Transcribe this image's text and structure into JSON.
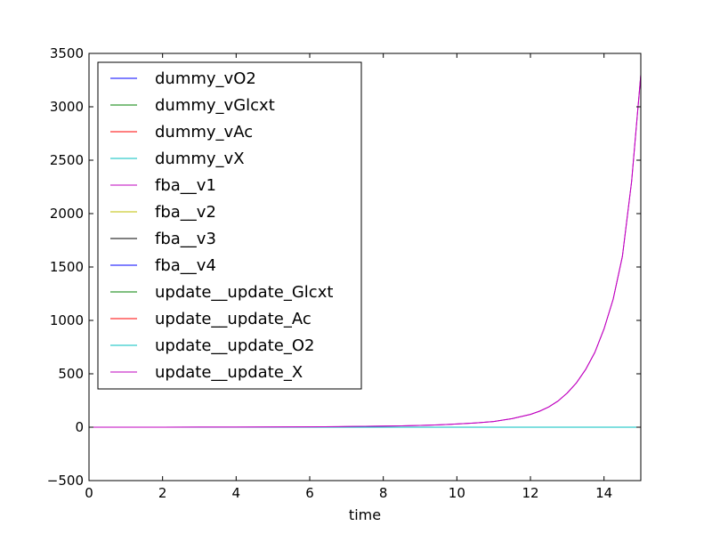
{
  "chart_data": {
    "type": "line",
    "title": "",
    "xlabel": "time",
    "ylabel": "",
    "xlim": [
      0,
      15
    ],
    "ylim": [
      -500,
      3500
    ],
    "xticks": [
      0,
      2,
      4,
      6,
      8,
      10,
      12,
      14
    ],
    "yticks": [
      -500,
      0,
      500,
      1000,
      1500,
      2000,
      2500,
      3000,
      3500
    ],
    "ytick_labels": [
      "−500",
      "0",
      "500",
      "1000",
      "1500",
      "2000",
      "2500",
      "3000",
      "3500"
    ],
    "grid": false,
    "legend_position": "upper-left",
    "x": [
      0,
      1,
      2,
      3,
      4,
      5,
      6,
      7,
      8,
      8.5,
      9,
      9.5,
      10,
      10.5,
      11,
      11.5,
      12,
      12.25,
      12.5,
      12.75,
      13,
      13.25,
      13.5,
      13.75,
      14,
      14.25,
      14.5,
      14.75,
      15
    ],
    "series": [
      {
        "name": "dummy_vO2",
        "color": "#0000ff",
        "values": [
          0,
          0,
          0,
          0,
          0,
          0,
          0,
          0,
          0,
          0,
          0,
          0,
          0,
          0,
          0,
          0,
          0,
          0,
          0,
          0,
          0,
          0,
          0,
          0,
          0,
          0,
          0,
          0,
          0
        ]
      },
      {
        "name": "dummy_vGlcxt",
        "color": "#008000",
        "values": [
          0,
          0,
          0,
          0,
          0,
          0,
          0,
          0,
          0,
          0,
          0,
          0,
          0,
          0,
          0,
          0,
          0,
          0,
          0,
          0,
          0,
          0,
          0,
          0,
          0,
          0,
          0,
          0,
          0
        ]
      },
      {
        "name": "dummy_vAc",
        "color": "#ff0000",
        "values": [
          0,
          0,
          0,
          0,
          0,
          0,
          0,
          0,
          0,
          0,
          0,
          0,
          0,
          0,
          0,
          0,
          0,
          0,
          0,
          0,
          0,
          0,
          0,
          0,
          0,
          0,
          0,
          0,
          0
        ]
      },
      {
        "name": "dummy_vX",
        "color": "#00bfbf",
        "values": [
          0,
          0,
          0,
          0,
          0,
          0,
          0,
          0,
          0,
          0,
          0,
          0,
          0,
          0,
          0,
          0,
          0,
          0,
          0,
          0,
          0,
          0,
          0,
          0,
          0,
          0,
          0,
          0,
          0
        ]
      },
      {
        "name": "fba__v1",
        "color": "#bf00bf",
        "values": [
          0.1,
          0.2,
          0.4,
          0.7,
          1.2,
          2,
          3.5,
          6,
          10,
          13,
          17,
          22,
          30,
          40,
          53,
          80,
          120,
          150,
          190,
          245,
          320,
          415,
          540,
          700,
          920,
          1200,
          1600,
          2300,
          3300
        ]
      },
      {
        "name": "fba__v2",
        "color": "#bfbf00",
        "values": [
          0,
          0,
          0,
          0,
          0,
          0,
          0,
          0,
          0,
          0,
          0,
          0,
          0,
          0,
          0,
          0,
          0,
          0,
          0,
          0,
          0,
          0,
          0,
          0,
          0,
          0,
          0,
          0,
          0
        ]
      },
      {
        "name": "fba__v3",
        "color": "#000000",
        "values": [
          0,
          0,
          0,
          0,
          0,
          0,
          0,
          0,
          0,
          0,
          0,
          0,
          0,
          0,
          0,
          0,
          0,
          0,
          0,
          0,
          0,
          0,
          0,
          0,
          0,
          0,
          0,
          0,
          0
        ]
      },
      {
        "name": "fba__v4",
        "color": "#0000ff",
        "values": [
          0,
          0,
          0,
          0,
          0,
          0,
          0,
          0,
          0,
          0,
          0,
          0,
          0,
          0,
          0,
          0,
          0,
          0,
          0,
          0,
          0,
          0,
          0,
          0,
          0,
          0,
          0,
          0,
          0
        ]
      },
      {
        "name": "update__update_Glcxt",
        "color": "#008000",
        "values": [
          0,
          0,
          0,
          0,
          0,
          0,
          0,
          0,
          0,
          0,
          0,
          0,
          0,
          0,
          0,
          0,
          0,
          0,
          0,
          0,
          0,
          0,
          0,
          0,
          0,
          0,
          0,
          0,
          0
        ]
      },
      {
        "name": "update__update_Ac",
        "color": "#ff0000",
        "values": [
          0,
          0,
          0,
          0,
          0,
          0,
          0,
          0,
          0,
          0,
          0,
          0,
          0,
          0,
          0,
          0,
          0,
          0,
          0,
          0,
          0,
          0,
          0,
          0,
          0,
          0,
          0,
          0,
          0
        ]
      },
      {
        "name": "update__update_O2",
        "color": "#00bfbf",
        "values": [
          0,
          0,
          0,
          0,
          0,
          0,
          0,
          0,
          0,
          0,
          0,
          0,
          0,
          0,
          0,
          0,
          0,
          0,
          0,
          0,
          0,
          0,
          0,
          0,
          0,
          0,
          0,
          0,
          0
        ]
      },
      {
        "name": "update__update_X",
        "color": "#bf00bf",
        "values": [
          0.1,
          0.2,
          0.4,
          0.7,
          1.2,
          2,
          3.5,
          6,
          10,
          13,
          17,
          22,
          30,
          40,
          53,
          80,
          120,
          150,
          190,
          245,
          320,
          415,
          540,
          700,
          920,
          1200,
          1600,
          2300,
          3300
        ]
      }
    ]
  }
}
